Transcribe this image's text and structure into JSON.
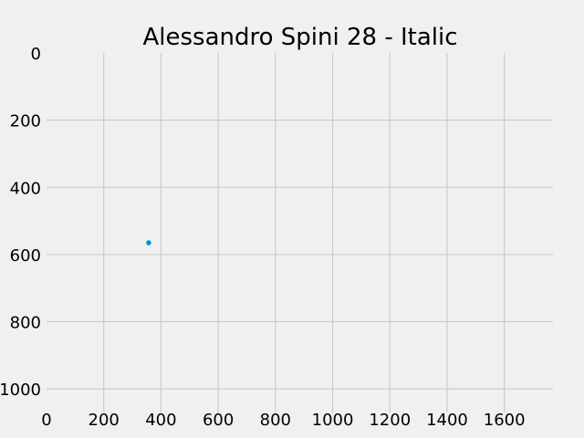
{
  "chart_data": {
    "type": "scatter",
    "title": "Alessandro Spini 28 - Italic",
    "xlabel": "",
    "ylabel": "",
    "xlim": [
      0,
      1770
    ],
    "ylim": [
      1070,
      0
    ],
    "y_inverted": true,
    "xticks": [
      0,
      200,
      400,
      600,
      800,
      1000,
      1200,
      1400,
      1600
    ],
    "yticks": [
      0,
      200,
      400,
      600,
      800,
      1000
    ],
    "grid": true,
    "points": [
      {
        "x": 357,
        "y": 565
      }
    ],
    "point_color": "#008fd5",
    "background": "#f0f0f0",
    "grid_color": "#cbcbcb"
  }
}
